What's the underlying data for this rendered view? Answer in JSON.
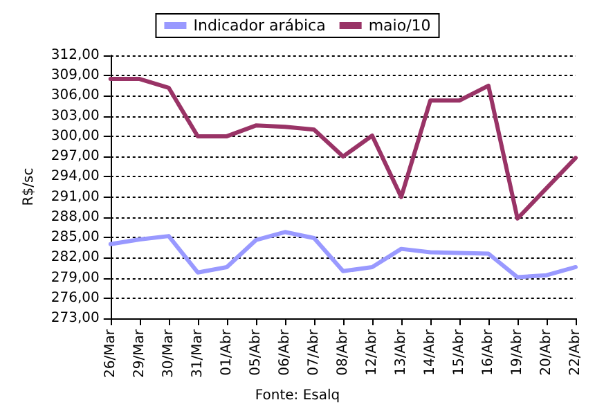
{
  "chart_data": {
    "type": "line",
    "ylabel": "R$/sc",
    "annotations": [
      "Fonte: Esalq"
    ],
    "categories": [
      "26/Mar",
      "29/Mar",
      "30/Mar",
      "31/Mar",
      "01/Abr",
      "05/Abr",
      "06/Abr",
      "07/Abr",
      "08/Abr",
      "12/Abr",
      "13/Abr",
      "14/Abr",
      "15/Abr",
      "16/Abr",
      "19/Abr",
      "20/Abr",
      "22/Abr"
    ],
    "series": [
      {
        "name": "Indicador arábica",
        "color": "#9999ff",
        "values": [
          284.0,
          284.7,
          285.2,
          279.8,
          280.6,
          284.6,
          285.8,
          284.9,
          280.0,
          280.6,
          283.3,
          282.8,
          282.7,
          282.6,
          279.1,
          279.4,
          280.6
        ]
      },
      {
        "name": "maio/10",
        "color": "#993366",
        "values": [
          308.5,
          308.5,
          307.2,
          300.0,
          300.0,
          301.6,
          301.4,
          301.0,
          297.0,
          300.1,
          291.0,
          305.3,
          305.3,
          307.5,
          287.8,
          292.3,
          296.8
        ]
      }
    ],
    "ylim": [
      273,
      312
    ],
    "yticks": [
      {
        "value": 273,
        "label": "273,00"
      },
      {
        "value": 276,
        "label": "276,00"
      },
      {
        "value": 279,
        "label": "279,00"
      },
      {
        "value": 282,
        "label": "282,00"
      },
      {
        "value": 285,
        "label": "285,00"
      },
      {
        "value": 288,
        "label": "288,00"
      },
      {
        "value": 291,
        "label": "291,00"
      },
      {
        "value": 294,
        "label": "294,00"
      },
      {
        "value": 297,
        "label": "297,00"
      },
      {
        "value": 300,
        "label": "300,00"
      },
      {
        "value": 303,
        "label": "303,00"
      },
      {
        "value": 306,
        "label": "306,00"
      },
      {
        "value": 309,
        "label": "309,00"
      },
      {
        "value": 312,
        "label": "312,00"
      }
    ],
    "grid": "y",
    "legend": "top",
    "marker": "none",
    "line_style": "solid"
  }
}
